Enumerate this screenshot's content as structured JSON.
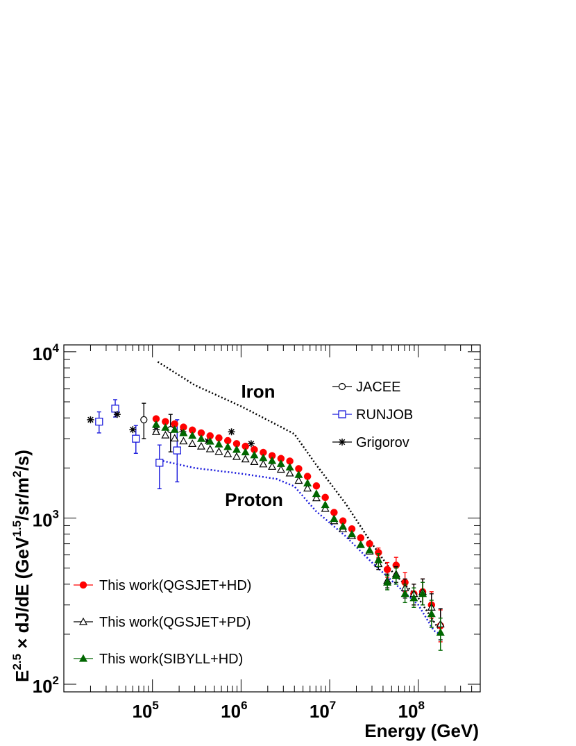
{
  "chart_data": {
    "type": "scatter",
    "x_scale": "log",
    "y_scale": "log",
    "xlim": [
      10000,
      500000000
    ],
    "ylim": [
      90,
      11000
    ],
    "xlabel": "Energy (GeV)",
    "ylabel": "E^{2.5} × dJ/dE (GeV^{1.5}/sr/m^{2}/s)",
    "ylabel_parts": {
      "base": "E",
      "base_exp": "2.5",
      "mid": " × dJ/dE (GeV",
      "unit_exp1": "1.5",
      "mid2": "/sr/m",
      "unit_exp2": "2",
      "end": "/s)"
    },
    "x_ticks": [
      {
        "value": 100000,
        "base": "10",
        "exp": "5"
      },
      {
        "value": 1000000,
        "base": "10",
        "exp": "6"
      },
      {
        "value": 10000000,
        "base": "10",
        "exp": "7"
      },
      {
        "value": 100000000,
        "base": "10",
        "exp": "8"
      }
    ],
    "y_ticks": [
      {
        "value": 100,
        "base": "10",
        "exp": "2"
      },
      {
        "value": 1000,
        "base": "10",
        "exp": "3"
      },
      {
        "value": 10000,
        "base": "10",
        "exp": "4"
      }
    ],
    "annotations": [
      {
        "text": "Iron",
        "x": 1600000,
        "y": 4800
      },
      {
        "text": "Proton",
        "x": 1500000,
        "y": 1130
      }
    ],
    "legend_top": {
      "placement": "top-right",
      "entries": [
        {
          "label": "JACEE",
          "marker": "open-circle",
          "color": "#000000"
        },
        {
          "label": "RUNJOB",
          "marker": "open-square",
          "color": "#1a1adc"
        },
        {
          "label": "Grigorov",
          "marker": "star",
          "color": "#000000"
        }
      ]
    },
    "legend_bottom": {
      "placement": "bottom-left",
      "entries": [
        {
          "label": "This work(QGSJET+HD)",
          "marker": "filled-circle",
          "color": "#ff0000"
        },
        {
          "label": "This work(QGSJET+PD)",
          "marker": "open-triangle",
          "color": "#000000"
        },
        {
          "label": "This work(SIBYLL+HD)",
          "marker": "filled-triangle",
          "color": "#006600"
        }
      ]
    },
    "lines": [
      {
        "label": "Iron",
        "style": "dotted",
        "color": "#000000",
        "points": [
          [
            115000,
            8700
          ],
          [
            300000,
            6300
          ],
          [
            1000000,
            4700
          ],
          [
            2500000,
            3650
          ],
          [
            4000000,
            3200
          ],
          [
            7000000,
            2100
          ],
          [
            15000000,
            1230
          ],
          [
            30000000,
            700
          ],
          [
            50000000,
            480
          ],
          [
            100000000,
            330
          ],
          [
            170000000,
            215
          ]
        ]
      },
      {
        "label": "Proton",
        "style": "dotted",
        "color": "#1a1adc",
        "points": [
          [
            110000,
            2250
          ],
          [
            300000,
            2000
          ],
          [
            1000000,
            1850
          ],
          [
            2500000,
            1720
          ],
          [
            4000000,
            1550
          ],
          [
            7000000,
            1100
          ],
          [
            15000000,
            780
          ],
          [
            30000000,
            540
          ],
          [
            50000000,
            420
          ],
          [
            100000000,
            300
          ],
          [
            150000000,
            210
          ],
          [
            175000000,
            200
          ]
        ]
      }
    ],
    "series": [
      {
        "name": "JACEE",
        "marker": "open-circle",
        "color": "#000000",
        "points": [
          {
            "x": 80000,
            "y": 3900,
            "lo": 3000,
            "hi": 4900
          },
          {
            "x": 160000,
            "y": 3400,
            "lo": 2500,
            "hi": 4200
          }
        ]
      },
      {
        "name": "RUNJOB",
        "marker": "open-square",
        "color": "#1a1adc",
        "points": [
          {
            "x": 25000,
            "y": 3800,
            "lo": 3250,
            "hi": 4350
          },
          {
            "x": 38000,
            "y": 4550,
            "lo": 4050,
            "hi": 5150
          },
          {
            "x": 65000,
            "y": 3000,
            "lo": 2450,
            "hi": 3600
          },
          {
            "x": 120000,
            "y": 2150,
            "lo": 1500,
            "hi": 2750
          },
          {
            "x": 190000,
            "y": 2550,
            "lo": 1650,
            "hi": 3900
          }
        ]
      },
      {
        "name": "Grigorov",
        "marker": "star",
        "color": "#000000",
        "points": [
          {
            "x": 20000,
            "y": 3900
          },
          {
            "x": 40000,
            "y": 4200
          },
          {
            "x": 60000,
            "y": 3400
          },
          {
            "x": 110000,
            "y": 3400
          },
          {
            "x": 220000,
            "y": 3300
          },
          {
            "x": 420000,
            "y": 2900
          },
          {
            "x": 780000,
            "y": 3300
          },
          {
            "x": 1300000,
            "y": 2800
          }
        ]
      },
      {
        "name": "This work(QGSJET+HD)",
        "marker": "filled-circle",
        "color": "#ff0000",
        "points": [
          {
            "x": 110000,
            "y": 3950
          },
          {
            "x": 140000,
            "y": 3800
          },
          {
            "x": 178000,
            "y": 3680
          },
          {
            "x": 224000,
            "y": 3520
          },
          {
            "x": 282000,
            "y": 3380
          },
          {
            "x": 355000,
            "y": 3250
          },
          {
            "x": 447000,
            "y": 3120
          },
          {
            "x": 562000,
            "y": 3030
          },
          {
            "x": 708000,
            "y": 2920
          },
          {
            "x": 891000,
            "y": 2800
          },
          {
            "x": 1120000,
            "y": 2700
          },
          {
            "x": 1410000,
            "y": 2580
          },
          {
            "x": 1780000,
            "y": 2480
          },
          {
            "x": 2240000,
            "y": 2370
          },
          {
            "x": 2820000,
            "y": 2280
          },
          {
            "x": 3550000,
            "y": 2200
          },
          {
            "x": 4470000,
            "y": 1980
          },
          {
            "x": 5620000,
            "y": 1780
          },
          {
            "x": 7080000,
            "y": 1560
          },
          {
            "x": 8910000,
            "y": 1330
          },
          {
            "x": 11200000,
            "y": 1080
          },
          {
            "x": 14100000,
            "y": 960
          },
          {
            "x": 17800000,
            "y": 860
          },
          {
            "x": 22400000,
            "y": 760
          },
          {
            "x": 28200000,
            "y": 700
          },
          {
            "x": 35500000,
            "y": 620,
            "lo": 580,
            "hi": 660
          },
          {
            "x": 44700000,
            "y": 490,
            "lo": 440,
            "hi": 540
          },
          {
            "x": 56200000,
            "y": 520,
            "lo": 460,
            "hi": 580
          },
          {
            "x": 70800000,
            "y": 410,
            "lo": 360,
            "hi": 470
          },
          {
            "x": 89100000,
            "y": 350,
            "lo": 300,
            "hi": 400
          },
          {
            "x": 112000000,
            "y": 360,
            "lo": 300,
            "hi": 430
          },
          {
            "x": 141000000,
            "y": 300,
            "lo": 250,
            "hi": 360
          },
          {
            "x": 178000000,
            "y": 225,
            "lo": 180,
            "hi": 280
          }
        ]
      },
      {
        "name": "This work(QGSJET+PD)",
        "marker": "open-triangle",
        "color": "#000000",
        "points": [
          {
            "x": 110000,
            "y": 3300
          },
          {
            "x": 140000,
            "y": 3150
          },
          {
            "x": 178000,
            "y": 3020
          },
          {
            "x": 224000,
            "y": 2900
          },
          {
            "x": 282000,
            "y": 2800
          },
          {
            "x": 355000,
            "y": 2700
          },
          {
            "x": 447000,
            "y": 2600
          },
          {
            "x": 562000,
            "y": 2510
          },
          {
            "x": 708000,
            "y": 2430
          },
          {
            "x": 891000,
            "y": 2340
          },
          {
            "x": 1120000,
            "y": 2260
          },
          {
            "x": 1410000,
            "y": 2180
          },
          {
            "x": 1780000,
            "y": 2110
          },
          {
            "x": 2240000,
            "y": 2040
          },
          {
            "x": 2820000,
            "y": 1960
          },
          {
            "x": 3550000,
            "y": 1860
          },
          {
            "x": 4470000,
            "y": 1680
          },
          {
            "x": 5620000,
            "y": 1510
          },
          {
            "x": 7080000,
            "y": 1320
          },
          {
            "x": 8910000,
            "y": 1140
          },
          {
            "x": 11200000,
            "y": 960
          },
          {
            "x": 14100000,
            "y": 860
          },
          {
            "x": 17800000,
            "y": 780
          },
          {
            "x": 22400000,
            "y": 690
          },
          {
            "x": 28200000,
            "y": 630
          },
          {
            "x": 35500000,
            "y": 530,
            "lo": 490,
            "hi": 570
          },
          {
            "x": 44700000,
            "y": 420,
            "lo": 380,
            "hi": 460
          },
          {
            "x": 56200000,
            "y": 460,
            "lo": 410,
            "hi": 510
          },
          {
            "x": 70800000,
            "y": 380,
            "lo": 330,
            "hi": 430
          },
          {
            "x": 89100000,
            "y": 350,
            "lo": 300,
            "hi": 400
          },
          {
            "x": 112000000,
            "y": 360,
            "lo": 300,
            "hi": 430
          },
          {
            "x": 141000000,
            "y": 290,
            "lo": 240,
            "hi": 350
          },
          {
            "x": 178000000,
            "y": 230,
            "lo": 185,
            "hi": 285
          }
        ]
      },
      {
        "name": "This work(SIBYLL+HD)",
        "marker": "filled-triangle",
        "color": "#006600",
        "points": [
          {
            "x": 110000,
            "y": 3650
          },
          {
            "x": 140000,
            "y": 3500
          },
          {
            "x": 178000,
            "y": 3400
          },
          {
            "x": 224000,
            "y": 3250
          },
          {
            "x": 282000,
            "y": 3130
          },
          {
            "x": 355000,
            "y": 3000
          },
          {
            "x": 447000,
            "y": 2890
          },
          {
            "x": 562000,
            "y": 2780
          },
          {
            "x": 708000,
            "y": 2680
          },
          {
            "x": 891000,
            "y": 2580
          },
          {
            "x": 1120000,
            "y": 2490
          },
          {
            "x": 1410000,
            "y": 2390
          },
          {
            "x": 1780000,
            "y": 2300
          },
          {
            "x": 2240000,
            "y": 2210
          },
          {
            "x": 2820000,
            "y": 2120
          },
          {
            "x": 3550000,
            "y": 2020
          },
          {
            "x": 4470000,
            "y": 1820
          },
          {
            "x": 5620000,
            "y": 1620
          },
          {
            "x": 7080000,
            "y": 1400
          },
          {
            "x": 8910000,
            "y": 1200
          },
          {
            "x": 11200000,
            "y": 990
          },
          {
            "x": 14100000,
            "y": 890
          },
          {
            "x": 17800000,
            "y": 800
          },
          {
            "x": 22400000,
            "y": 690
          },
          {
            "x": 28200000,
            "y": 640
          },
          {
            "x": 35500000,
            "y": 560,
            "lo": 510,
            "hi": 610
          },
          {
            "x": 44700000,
            "y": 410,
            "lo": 370,
            "hi": 450
          },
          {
            "x": 56200000,
            "y": 450,
            "lo": 400,
            "hi": 500
          },
          {
            "x": 70800000,
            "y": 350,
            "lo": 310,
            "hi": 400
          },
          {
            "x": 89100000,
            "y": 330,
            "lo": 290,
            "hi": 380
          },
          {
            "x": 112000000,
            "y": 350,
            "lo": 300,
            "hi": 410
          },
          {
            "x": 141000000,
            "y": 265,
            "lo": 220,
            "hi": 320
          },
          {
            "x": 178000000,
            "y": 205,
            "lo": 160,
            "hi": 250
          }
        ]
      }
    ]
  }
}
